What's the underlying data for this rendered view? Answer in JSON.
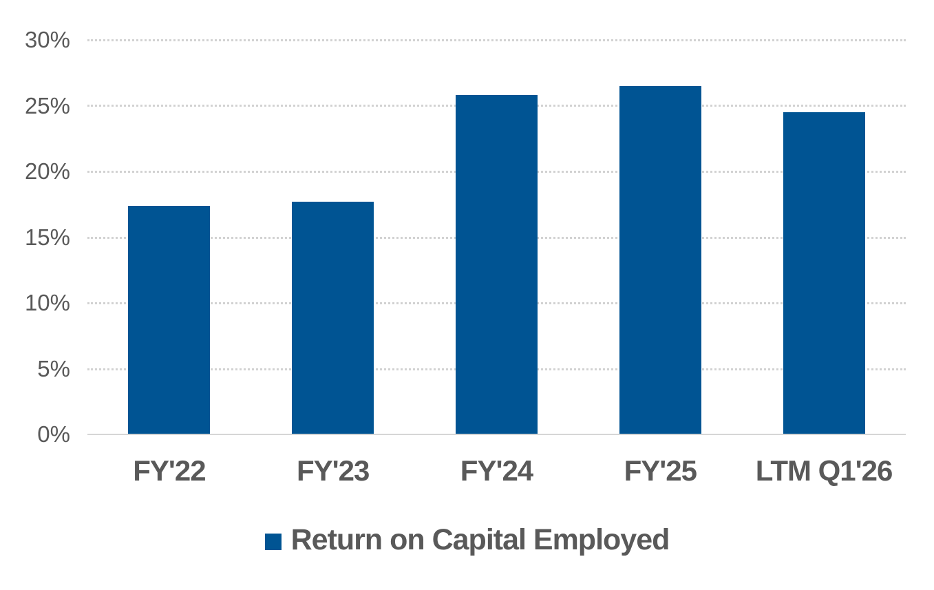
{
  "chart_data": {
    "type": "bar",
    "title": "",
    "xlabel": "",
    "ylabel": "",
    "categories": [
      "FY'22",
      "FY'23",
      "FY'24",
      "FY'25",
      "LTM Q1'26"
    ],
    "series": [
      {
        "name": "Return on Capital Employed",
        "values": [
          17.4,
          17.7,
          25.8,
          26.5,
          24.5
        ]
      }
    ],
    "ylim": [
      0,
      30
    ],
    "ytick_step": 5,
    "ytick_labels": [
      "0%",
      "5%",
      "10%",
      "15%",
      "20%",
      "25%",
      "30%"
    ],
    "grid": "horizontal-dotted",
    "legend_position": "bottom-center",
    "bar_gap_ratio": 0.5,
    "colors": {
      "bar": "#005493",
      "axis_text": "#595959",
      "gridline": "#d2d2d2",
      "axis_line": "#d6d6d6",
      "background": "#ffffff"
    }
  }
}
